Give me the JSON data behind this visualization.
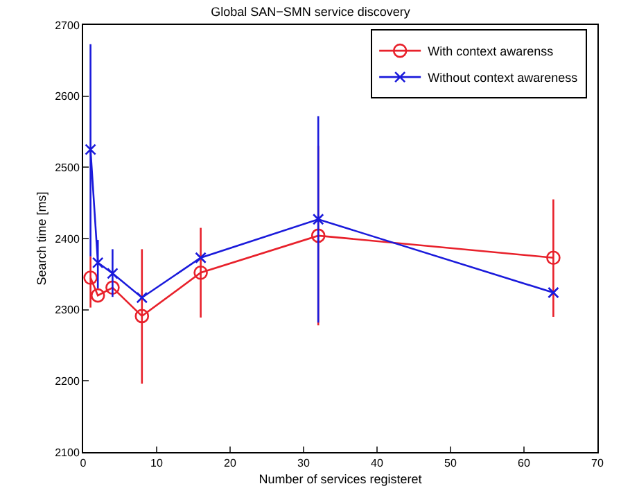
{
  "chart_data": {
    "type": "line",
    "title": "Global SAN−SMN service discovery",
    "xlabel": "Number of services registeret",
    "ylabel": "Search time [ms]",
    "x": [
      1,
      2,
      4,
      8,
      16,
      32,
      64
    ],
    "series": [
      {
        "name": "With context awarenss",
        "color": "#e8212b",
        "marker": "circle",
        "values": [
          2345,
          2320,
          2331,
          2291,
          2352,
          2404,
          2373
        ],
        "errors": [
          [
            2303,
            2375
          ],
          null,
          null,
          [
            2196,
            2385
          ],
          [
            2289,
            2415
          ],
          [
            2278,
            2530
          ],
          [
            2290,
            2455
          ]
        ]
      },
      {
        "name": "Without context awareness",
        "color": "#1a1adb",
        "marker": "cross",
        "values": [
          2525,
          2366,
          2351,
          2317,
          2373,
          2427,
          2324
        ],
        "errors": [
          [
            2375,
            2673
          ],
          [
            2330,
            2398
          ],
          [
            2318,
            2385
          ],
          null,
          null,
          [
            2282,
            2572
          ],
          null
        ]
      }
    ],
    "xlim": [
      0,
      70
    ],
    "xticks": [
      0,
      10,
      20,
      30,
      40,
      50,
      60,
      70
    ],
    "ylim": [
      2100,
      2700
    ],
    "yticks": [
      2100,
      2200,
      2300,
      2400,
      2500,
      2600,
      2700
    ],
    "legend": "top right",
    "line_style": "solid"
  }
}
